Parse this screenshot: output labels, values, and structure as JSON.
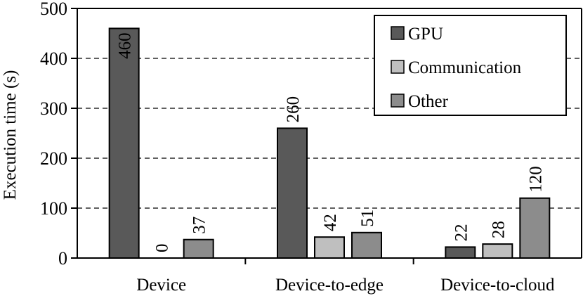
{
  "chart_data": {
    "type": "bar",
    "categories": [
      "Device",
      "Device-to-edge",
      "Device-to-cloud"
    ],
    "series": [
      {
        "name": "GPU",
        "color": "#595959",
        "values": [
          460,
          260,
          22
        ]
      },
      {
        "name": "Communication",
        "color": "#bfbfbf",
        "values": [
          0,
          42,
          28
        ]
      },
      {
        "name": "Other",
        "color": "#8c8c8c",
        "values": [
          37,
          51,
          120
        ]
      }
    ],
    "title": "",
    "xlabel": "",
    "ylabel": "Execution time (s)",
    "ylim": [
      0,
      500
    ],
    "yticks": [
      0,
      100,
      200,
      300,
      400,
      500
    ],
    "grid": "horizontal dashed",
    "legend_position": "top-right"
  }
}
